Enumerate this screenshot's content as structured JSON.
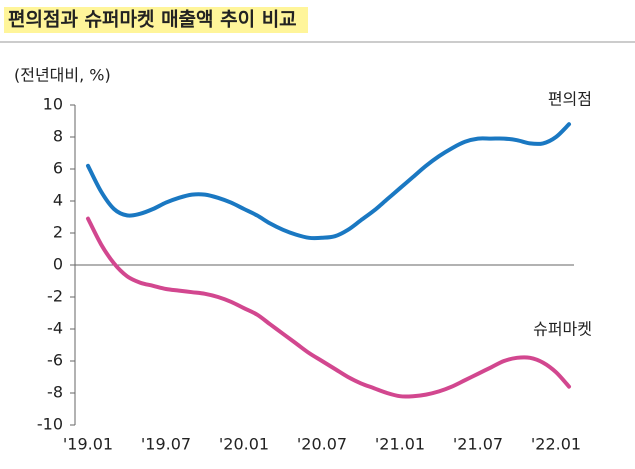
{
  "chart_data": {
    "type": "line",
    "title": "편의점과 슈퍼마켓 매출액 추이 비교",
    "y_label": "(전년대비, %)",
    "categories": [
      "'19.01",
      null,
      null,
      null,
      null,
      null,
      "'19.07",
      null,
      null,
      null,
      null,
      null,
      "'20.01",
      null,
      null,
      null,
      null,
      null,
      "'20.07",
      null,
      null,
      null,
      null,
      null,
      "'21.01",
      null,
      null,
      null,
      null,
      null,
      "'21.07",
      null,
      null,
      null,
      null,
      null,
      "'22.01",
      null
    ],
    "series": [
      {
        "name": "편의점",
        "color": "#1a78c2",
        "values": [
          6.2,
          4.6,
          3.5,
          3.1,
          3.2,
          3.5,
          3.9,
          4.2,
          4.4,
          4.4,
          4.2,
          3.9,
          3.5,
          3.1,
          2.6,
          2.2,
          1.9,
          1.7,
          1.7,
          1.8,
          2.2,
          2.8,
          3.4,
          4.1,
          4.8,
          5.5,
          6.2,
          6.8,
          7.3,
          7.7,
          7.9,
          7.9,
          7.9,
          7.8,
          7.6,
          7.6,
          8.0,
          8.8
        ]
      },
      {
        "name": "슈퍼마켓",
        "color": "#d2478f",
        "values": [
          2.9,
          1.3,
          0.1,
          -0.7,
          -1.1,
          -1.3,
          -1.5,
          -1.6,
          -1.7,
          -1.8,
          -2.0,
          -2.3,
          -2.7,
          -3.1,
          -3.7,
          -4.3,
          -4.9,
          -5.5,
          -6.0,
          -6.5,
          -7.0,
          -7.4,
          -7.7,
          -8.0,
          -8.2,
          -8.2,
          -8.1,
          -7.9,
          -7.6,
          -7.2,
          -6.8,
          -6.4,
          -6.0,
          -5.8,
          -5.8,
          -6.1,
          -6.7,
          -7.6
        ]
      }
    ],
    "ylim": [
      -10,
      10
    ],
    "yticks": [
      10,
      8,
      6,
      4,
      2,
      0,
      -2,
      -4,
      -6,
      -8,
      -10
    ]
  }
}
